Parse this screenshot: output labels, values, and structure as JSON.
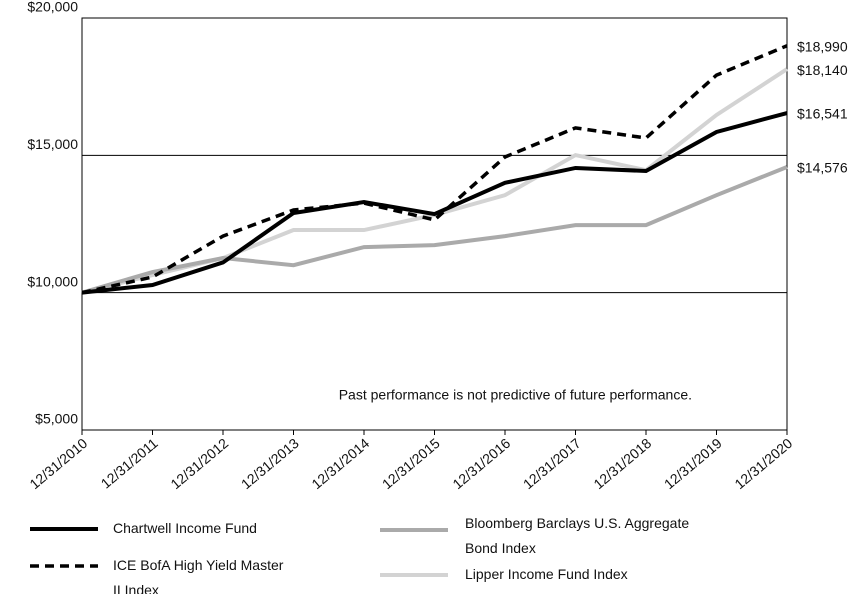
{
  "chart_data": {
    "type": "line",
    "categories": [
      "12/31/2010",
      "12/31/2011",
      "12/31/2012",
      "12/31/2013",
      "12/31/2014",
      "12/31/2015",
      "12/31/2016",
      "12/31/2017",
      "12/31/2018",
      "12/31/2019",
      "12/31/2020"
    ],
    "series": [
      {
        "name": "Chartwell Income Fund",
        "color": "#000000",
        "dashed": false,
        "values": [
          10000,
          10280,
          11100,
          12900,
          13300,
          12860,
          14000,
          14540,
          14430,
          15850,
          16541
        ],
        "value_labels": [
          null,
          null,
          null,
          null,
          null,
          null,
          null,
          null,
          null,
          null,
          "$16,541"
        ]
      },
      {
        "name": "ICE BofA High Yield Master II Index",
        "color": "#000000",
        "dashed": true,
        "values": [
          10000,
          10570,
          12060,
          13010,
          13260,
          12650,
          14940,
          16000,
          15630,
          17920,
          18990
        ],
        "value_labels": [
          null,
          null,
          null,
          null,
          null,
          null,
          null,
          null,
          null,
          null,
          "$18,990"
        ]
      },
      {
        "name": "Bloomberg Barclays U.S. Aggregate Bond Index",
        "color": "#aaaaaa",
        "dashed": false,
        "values": [
          10000,
          10750,
          11260,
          11000,
          11660,
          11730,
          12060,
          12460,
          12460,
          13550,
          14576
        ],
        "value_labels": [
          null,
          null,
          null,
          null,
          null,
          null,
          null,
          null,
          null,
          null,
          "$14,576"
        ]
      },
      {
        "name": "Lipper Income Fund Index",
        "color": "#d3d3d3",
        "dashed": false,
        "values": [
          10000,
          10640,
          11260,
          12280,
          12280,
          12830,
          13550,
          15010,
          14460,
          16470,
          18140
        ],
        "value_labels": [
          null,
          null,
          null,
          null,
          null,
          null,
          null,
          null,
          null,
          null,
          "$18,140"
        ]
      }
    ],
    "ylim": [
      5000,
      20000
    ],
    "yticks": [
      {
        "value": 5000,
        "label": "$5,000"
      },
      {
        "value": 10000,
        "label": "$10,000"
      },
      {
        "value": 15000,
        "label": "$15,000"
      },
      {
        "value": 20000,
        "label": "$20,000"
      }
    ],
    "grid": true,
    "annotation": "Past performance is not predictive of future performance."
  }
}
